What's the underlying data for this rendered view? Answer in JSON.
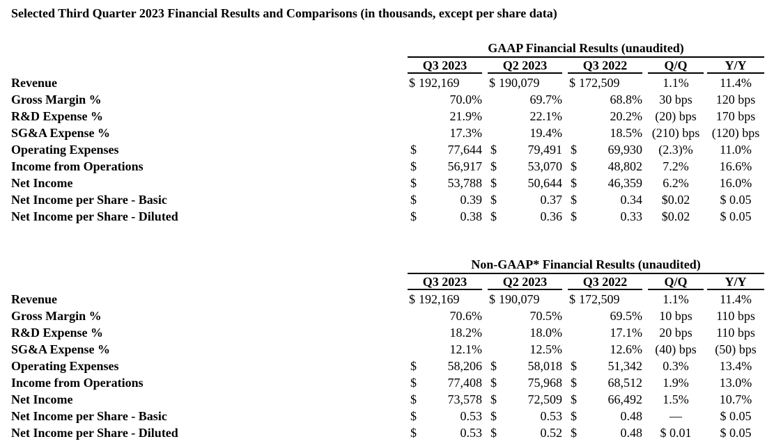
{
  "title": "Selected Third Quarter 2023 Financial Results and Comparisons (in thousands, except per share data)",
  "columns": [
    "Q3 2023",
    "Q2 2023",
    "Q3 2022",
    "Q/Q",
    "Y/Y"
  ],
  "tables": [
    {
      "heading": "GAAP Financial Results (unaudited)",
      "rows": [
        {
          "label": "Revenue",
          "cells": [
            [
              "$",
              "192,169"
            ],
            [
              "$",
              "190,079"
            ],
            [
              "$",
              "172,509"
            ],
            "1.1%",
            "11.4%"
          ]
        },
        {
          "label": "Gross Margin %",
          "cells": [
            [
              "",
              "70.0%"
            ],
            [
              "",
              "69.7%"
            ],
            [
              "",
              "68.8%"
            ],
            "30 bps",
            "120 bps"
          ]
        },
        {
          "label": "R&D Expense %",
          "cells": [
            [
              "",
              "21.9%"
            ],
            [
              "",
              "22.1%"
            ],
            [
              "",
              "20.2%"
            ],
            "(20) bps",
            "170 bps"
          ]
        },
        {
          "label": "SG&A Expense %",
          "cells": [
            [
              "",
              "17.3%"
            ],
            [
              "",
              "19.4%"
            ],
            [
              "",
              "18.5%"
            ],
            "(210) bps",
            "(120) bps"
          ]
        },
        {
          "label": "Operating Expenses",
          "cells": [
            [
              "$",
              "77,644"
            ],
            [
              "$",
              "79,491"
            ],
            [
              "$",
              "69,930"
            ],
            "(2.3)%",
            "11.0%"
          ]
        },
        {
          "label": "Income from Operations",
          "cells": [
            [
              "$",
              "56,917"
            ],
            [
              "$",
              "53,070"
            ],
            [
              "$",
              "48,802"
            ],
            "7.2%",
            "16.6%"
          ]
        },
        {
          "label": "Net Income",
          "cells": [
            [
              "$",
              "53,788"
            ],
            [
              "$",
              "50,644"
            ],
            [
              "$",
              "46,359"
            ],
            "6.2%",
            "16.0%"
          ]
        },
        {
          "label": "Net Income per Share - Basic",
          "cells": [
            [
              "$",
              "0.39"
            ],
            [
              "$",
              "0.37"
            ],
            [
              "$",
              "0.34"
            ],
            "$0.02",
            "$ 0.05"
          ]
        },
        {
          "label": "Net Income per Share - Diluted",
          "cells": [
            [
              "$",
              "0.38"
            ],
            [
              "$",
              "0.36"
            ],
            [
              "$",
              "0.33"
            ],
            "$0.02",
            "$ 0.05"
          ]
        }
      ]
    },
    {
      "heading": "Non-GAAP* Financial Results (unaudited)",
      "rows": [
        {
          "label": "Revenue",
          "cells": [
            [
              "$",
              "192,169"
            ],
            [
              "$",
              "190,079"
            ],
            [
              "$",
              "172,509"
            ],
            "1.1%",
            "11.4%"
          ]
        },
        {
          "label": "Gross Margin %",
          "cells": [
            [
              "",
              "70.6%"
            ],
            [
              "",
              "70.5%"
            ],
            [
              "",
              "69.5%"
            ],
            "10 bps",
            "110 bps"
          ]
        },
        {
          "label": "R&D Expense %",
          "cells": [
            [
              "",
              "18.2%"
            ],
            [
              "",
              "18.0%"
            ],
            [
              "",
              "17.1%"
            ],
            "20 bps",
            "110 bps"
          ]
        },
        {
          "label": "SG&A Expense %",
          "cells": [
            [
              "",
              "12.1%"
            ],
            [
              "",
              "12.5%"
            ],
            [
              "",
              "12.6%"
            ],
            "(40) bps",
            "(50) bps"
          ]
        },
        {
          "label": "Operating Expenses",
          "cells": [
            [
              "$",
              "58,206"
            ],
            [
              "$",
              "58,018"
            ],
            [
              "$",
              "51,342"
            ],
            "0.3%",
            "13.4%"
          ]
        },
        {
          "label": "Income from Operations",
          "cells": [
            [
              "$",
              "77,408"
            ],
            [
              "$",
              "75,968"
            ],
            [
              "$",
              "68,512"
            ],
            "1.9%",
            "13.0%"
          ]
        },
        {
          "label": "Net Income",
          "cells": [
            [
              "$",
              "73,578"
            ],
            [
              "$",
              "72,509"
            ],
            [
              "$",
              "66,492"
            ],
            "1.5%",
            "10.7%"
          ]
        },
        {
          "label": "Net Income per Share - Basic",
          "cells": [
            [
              "$",
              "0.53"
            ],
            [
              "$",
              "0.53"
            ],
            [
              "$",
              "0.48"
            ],
            "—",
            "$ 0.05"
          ]
        },
        {
          "label": "Net Income per Share - Diluted",
          "cells": [
            [
              "$",
              "0.53"
            ],
            [
              "$",
              "0.52"
            ],
            [
              "$",
              "0.48"
            ],
            "$ 0.01",
            "$ 0.05"
          ]
        }
      ]
    }
  ]
}
